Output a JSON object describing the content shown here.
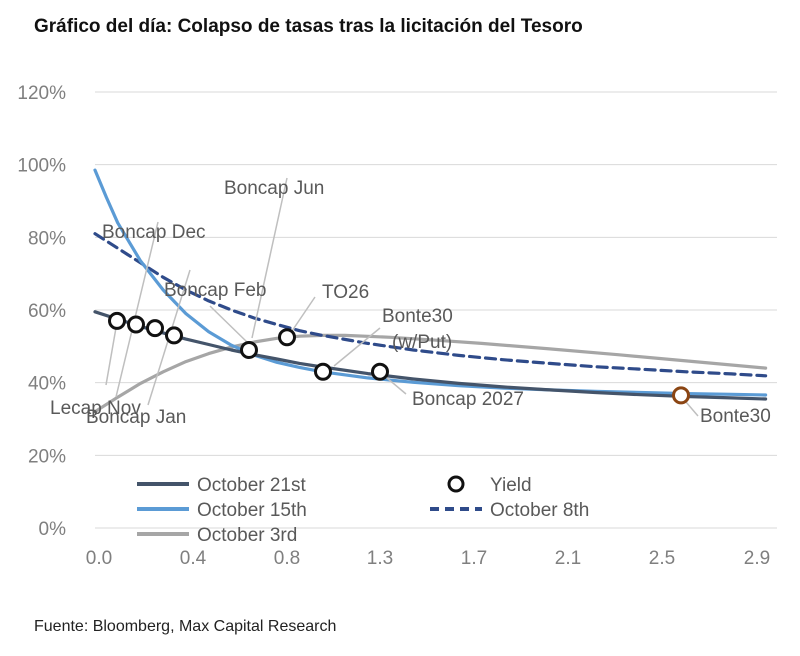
{
  "title": "Gráfico del día: Colapso de tasas tras la licitación del Tesoro",
  "source": "Fuente: Bloomberg, Max Capital Research",
  "chart_data": {
    "type": "line",
    "xlabel": "",
    "ylabel": "",
    "xlim": [
      0.0,
      3.0
    ],
    "ylim": [
      0,
      120
    ],
    "x_ticks": [
      "0.0",
      "0.4",
      "0.8",
      "1.3",
      "1.7",
      "2.1",
      "2.5",
      "2.9"
    ],
    "y_ticks": [
      "0%",
      "20%",
      "40%",
      "60%",
      "80%",
      "100%",
      "120%"
    ],
    "grid": true,
    "series": [
      {
        "name": "October 21st",
        "color": "#44546a",
        "style": "solid",
        "x": [
          0.0,
          0.1,
          0.2,
          0.3,
          0.4,
          0.5,
          0.6,
          0.7,
          0.8,
          0.9,
          1.0,
          1.2,
          1.4,
          1.6,
          1.8,
          2.0,
          2.2,
          2.4,
          2.6,
          2.8,
          2.95
        ],
        "y": [
          59.5,
          57.5,
          55.5,
          53.7,
          52.0,
          50.5,
          49.0,
          47.7,
          46.5,
          45.3,
          44.3,
          42.5,
          41.0,
          39.8,
          38.8,
          38.0,
          37.3,
          36.7,
          36.2,
          35.8,
          35.5
        ]
      },
      {
        "name": "October 15th",
        "color": "#5b9bd5",
        "style": "solid",
        "x": [
          0.0,
          0.05,
          0.1,
          0.2,
          0.3,
          0.4,
          0.5,
          0.6,
          0.7,
          0.8,
          0.9,
          1.0,
          1.2,
          1.4,
          1.6,
          1.8,
          2.0,
          2.2,
          2.4,
          2.6,
          2.8,
          2.95
        ],
        "y": [
          98.5,
          91.0,
          84.0,
          73.5,
          65.5,
          59.0,
          54.0,
          50.3,
          47.6,
          45.6,
          44.2,
          43.0,
          41.3,
          40.1,
          39.2,
          38.5,
          38.0,
          37.6,
          37.3,
          37.0,
          36.8,
          36.6
        ]
      },
      {
        "name": "October 3rd",
        "color": "#a6a6a6",
        "style": "solid",
        "x": [
          0.0,
          0.1,
          0.2,
          0.3,
          0.4,
          0.5,
          0.6,
          0.7,
          0.8,
          0.9,
          1.0,
          1.1,
          1.3,
          1.5,
          1.7,
          2.0,
          2.3,
          2.6,
          2.95
        ],
        "y": [
          32.0,
          36.0,
          39.8,
          43.0,
          45.8,
          48.0,
          49.8,
          51.2,
          52.2,
          52.8,
          53.0,
          53.0,
          52.5,
          51.7,
          50.8,
          49.3,
          47.7,
          46.0,
          44.0
        ]
      },
      {
        "name": "October 8th",
        "color": "#2f4b8a",
        "style": "dashed",
        "x": [
          0.0,
          0.1,
          0.2,
          0.3,
          0.4,
          0.5,
          0.6,
          0.7,
          0.8,
          0.9,
          1.0,
          1.2,
          1.4,
          1.6,
          1.8,
          2.0,
          2.2,
          2.4,
          2.6,
          2.8,
          2.95
        ],
        "y": [
          81.0,
          77.0,
          73.0,
          69.0,
          65.5,
          62.5,
          60.0,
          57.8,
          56.0,
          54.3,
          53.0,
          50.8,
          49.0,
          47.5,
          46.3,
          45.3,
          44.4,
          43.7,
          43.0,
          42.4,
          41.9
        ]
      }
    ],
    "yield_points": {
      "name": "Yield",
      "points": [
        {
          "label": "Lecap Nov",
          "x": 0.08,
          "y": 57.0
        },
        {
          "label": "Boncap Dec",
          "x": 0.16,
          "y": 56.0
        },
        {
          "label": "Boncap Jan",
          "x": 0.24,
          "y": 55.0
        },
        {
          "label": "Boncap Feb",
          "x": 0.32,
          "y": 53.0
        },
        {
          "label": "Boncap Jun",
          "x": 0.64,
          "y": 49.0
        },
        {
          "label": "TO26",
          "x": 0.8,
          "y": 52.5
        },
        {
          "label": "Bonte30 (w/Put)",
          "x": 0.96,
          "y": 43.0
        },
        {
          "label": "Boncap 2027",
          "x": 1.2,
          "y": 43.0
        },
        {
          "label": "Bonte30",
          "x": 2.45,
          "y": 36.5,
          "color": "#8b4513"
        }
      ]
    },
    "annotations": {
      "lecap_nov": "Lecap Nov",
      "boncap_dec": "Boncap Dec",
      "boncap_jan": "Boncap Jan",
      "boncap_feb": "Boncap Feb",
      "boncap_jun": "Boncap Jun",
      "to26": "TO26",
      "bonte30_put_1": "Bonte30",
      "bonte30_put_2": "(w/Put)",
      "boncap_2027": "Boncap 2027",
      "bonte30": "Bonte30"
    },
    "legend": [
      {
        "name": "October 21st",
        "marker": "line",
        "color": "#44546a"
      },
      {
        "name": "Yield",
        "marker": "circle",
        "color": "#111111"
      },
      {
        "name": "October 15th",
        "marker": "line",
        "color": "#5b9bd5"
      },
      {
        "name": "October 8th",
        "marker": "dashed",
        "color": "#2f4b8a"
      },
      {
        "name": "October 3rd",
        "marker": "line",
        "color": "#a6a6a6"
      }
    ]
  }
}
